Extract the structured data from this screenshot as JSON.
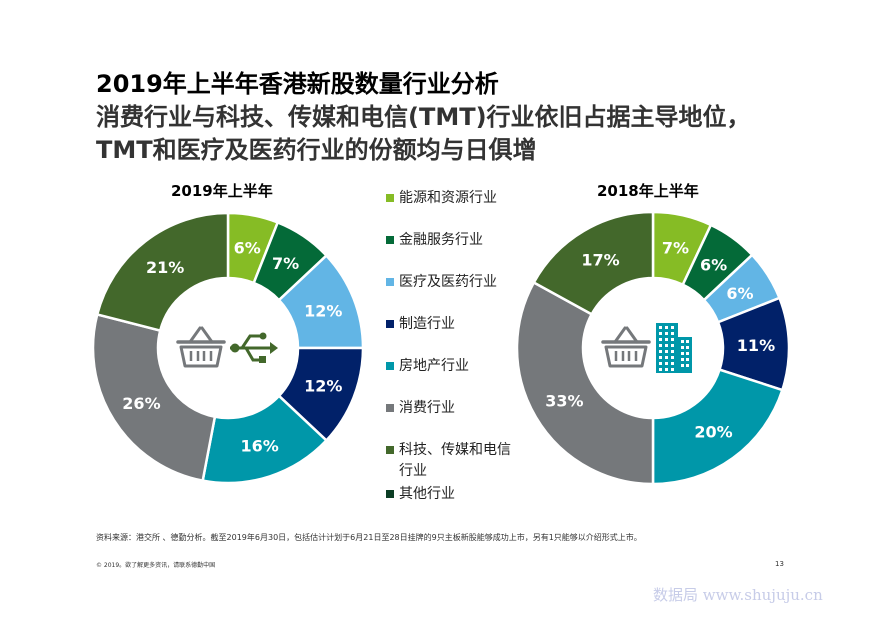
{
  "title": {
    "line1": "2019年上半年香港新股数量行业分析",
    "line2": "消费行业与科技、传媒和电信(TMT)行业依旧占据主导地位，",
    "line3": "TMT和医疗及医药行业的份额均与日俱增"
  },
  "legend": [
    {
      "label": "能源和资源行业",
      "color": "#86bc25"
    },
    {
      "label": "金融服务行业",
      "color": "#046a38"
    },
    {
      "label": "医疗及医药行业",
      "color": "#62b5e5"
    },
    {
      "label": "制造行业",
      "color": "#012169"
    },
    {
      "label": "房地产行业",
      "color": "#0097a9"
    },
    {
      "label": "消费行业",
      "color": "#75787b"
    },
    {
      "label": "科技、传媒和电信\n行业",
      "color": "#43682b"
    },
    {
      "label": "其他行业",
      "color": "#0b3d24"
    }
  ],
  "chart_data": [
    {
      "type": "pie",
      "title": "2019年上半年",
      "categories": [
        "能源和资源行业",
        "金融服务行业",
        "医疗及医药行业",
        "制造行业",
        "房地产行业",
        "消费行业",
        "科技、传媒和电信行业"
      ],
      "values": [
        6,
        7,
        12,
        12,
        16,
        26,
        21
      ],
      "labels": [
        "6%",
        "7%",
        "12%",
        "12%",
        "16%",
        "26%",
        "21%"
      ],
      "colors": [
        "#86bc25",
        "#046a38",
        "#62b5e5",
        "#012169",
        "#0097a9",
        "#75787b",
        "#43682b"
      ],
      "center_icons": [
        "shopping-basket-icon",
        "usb-icon"
      ]
    },
    {
      "type": "pie",
      "title": "2018年上半年",
      "categories": [
        "能源和资源行业",
        "金融服务行业",
        "医疗及医药行业",
        "制造行业",
        "房地产行业",
        "消费行业",
        "科技、传媒和电信行业"
      ],
      "values": [
        7,
        6,
        6,
        11,
        20,
        33,
        17
      ],
      "labels": [
        "7%",
        "6%",
        "6%",
        "11%",
        "20%",
        "33%",
        "17%"
      ],
      "colors": [
        "#86bc25",
        "#046a38",
        "#62b5e5",
        "#012169",
        "#0097a9",
        "#75787b",
        "#43682b"
      ],
      "center_icons": [
        "shopping-basket-icon",
        "building-icon"
      ]
    }
  ],
  "footnote": "资料来源：港交所 、德勤分析。截至2019年6月30日，包括估计计划于6月21日至28日挂牌的9只主板新股能够成功上市，另有1只能够以介绍形式上市。",
  "copyright": "© 2019。欲了解更多资讯，请联系德勤中国",
  "page_number": "13",
  "watermark": "数据局 www.shujuju.cn",
  "colors": {
    "icon_gray": "#75787b",
    "icon_green": "#43682b",
    "icon_teal": "#0097a9"
  }
}
